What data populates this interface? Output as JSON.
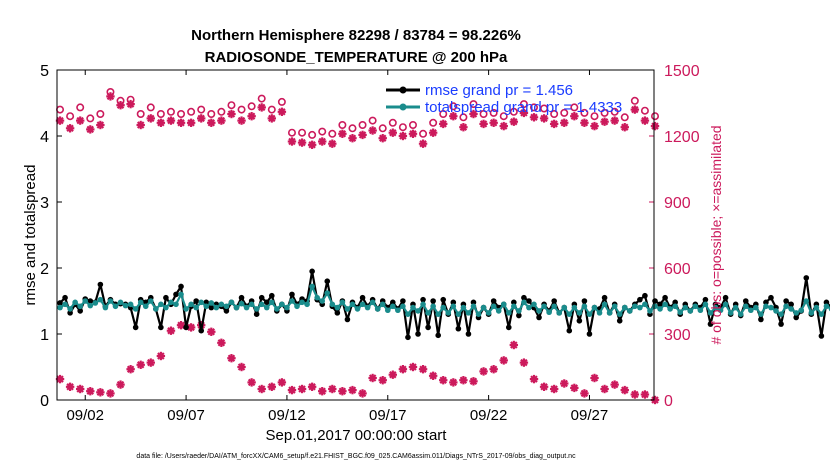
{
  "chart_data": {
    "type": "line",
    "title_line1": "Northern Hemisphere 82298 / 83784 = 98.226%",
    "title_line2": "RADIOSONDE_TEMPERATURE @ 200 hPa",
    "xlabel": "Sep.01,2017 00:00:00 start",
    "ylabel_left": "rmse and totalspread",
    "ylabel_right": "# of obs: o=possible; ×=assimilated",
    "footnote": "data file: /Users/raeder/DAI/ATM_forcXX/CAM6_setup/f.e21.FHIST_BGC.f09_025.CAM6assim.011/Diags_NTrS_2017-09/obs_diag_output.nc",
    "xlim": [
      0.6,
      30.2
    ],
    "ylim_left": [
      0,
      5
    ],
    "ylim_right": [
      0,
      1500
    ],
    "yticks_left": [
      "0",
      "1",
      "2",
      "3",
      "4",
      "5"
    ],
    "yticks_right": [
      "0",
      "300",
      "600",
      "900",
      "1200",
      "1500"
    ],
    "xticks": [
      {
        "day": 2,
        "label": "09/02"
      },
      {
        "day": 7,
        "label": "09/07"
      },
      {
        "day": 12,
        "label": "09/12"
      },
      {
        "day": 17,
        "label": "09/17"
      },
      {
        "day": 22,
        "label": "09/22"
      },
      {
        "day": 27,
        "label": "09/27"
      }
    ],
    "grid": false,
    "legend_location": "top-right",
    "colors": {
      "rmse": "#000000",
      "spread": "#1a8c8c",
      "obs": "#cc1a5c"
    },
    "legend": [
      {
        "label": "rmse grand pr = 1.456",
        "color": "#000000"
      },
      {
        "label": "totalspread grand pr = 1.4333",
        "color": "#1a8c8c"
      }
    ],
    "series": [
      {
        "name": "rmse",
        "axis": "left",
        "x_start": 0.75,
        "x_step": 0.25,
        "values": [
          1.47,
          1.55,
          1.32,
          1.45,
          1.35,
          1.53,
          1.5,
          1.48,
          1.75,
          1.42,
          1.52,
          1.45,
          1.46,
          1.45,
          1.4,
          1.1,
          1.52,
          1.48,
          1.55,
          1.38,
          1.1,
          1.55,
          1.45,
          1.6,
          1.72,
          1.1,
          1.42,
          1.5,
          1.05,
          1.48,
          1.4,
          1.45,
          1.42,
          1.35,
          1.48,
          1.4,
          1.55,
          1.42,
          1.5,
          1.3,
          1.55,
          1.48,
          1.58,
          1.35,
          1.45,
          1.35,
          1.6,
          1.45,
          1.53,
          1.5,
          1.95,
          1.52,
          1.45,
          1.8,
          1.42,
          1.32,
          1.5,
          1.22,
          1.48,
          1.4,
          1.55,
          1.42,
          1.52,
          1.38,
          1.5,
          1.4,
          1.48,
          1.38,
          1.5,
          0.95,
          1.45,
          1.0,
          1.52,
          1.1,
          1.5,
          0.98,
          1.52,
          1.3,
          1.48,
          1.08,
          1.45,
          1.0,
          1.48,
          1.25,
          1.4,
          1.3,
          1.5,
          1.4,
          1.45,
          1.1,
          1.48,
          1.28,
          1.55,
          1.5,
          1.4,
          1.25,
          1.45,
          1.35,
          1.5,
          1.32,
          1.4,
          1.05,
          1.45,
          1.2,
          1.5,
          1.0,
          1.4,
          1.38,
          1.55,
          1.32,
          1.45,
          1.2,
          1.4,
          1.35,
          1.45,
          1.52,
          1.58,
          1.3,
          1.5,
          1.45,
          1.55,
          1.4,
          1.48,
          1.3,
          1.45,
          1.35,
          1.45,
          1.4,
          1.52,
          1.15,
          1.45,
          1.4,
          1.55,
          1.3,
          1.45,
          1.28,
          1.5,
          1.4,
          1.45,
          1.22,
          1.48,
          1.55,
          1.4,
          1.15,
          1.5,
          1.45,
          1.25,
          1.35,
          1.85,
          1.3,
          1.45,
          0.97,
          1.48,
          1.4,
          1.42,
          1.3,
          1.55,
          1.62
        ]
      },
      {
        "name": "totalspread",
        "axis": "left",
        "x_start": 0.75,
        "x_step": 0.25,
        "values": [
          1.4,
          1.45,
          1.38,
          1.48,
          1.42,
          1.5,
          1.43,
          1.47,
          1.52,
          1.4,
          1.5,
          1.42,
          1.48,
          1.43,
          1.45,
          1.38,
          1.48,
          1.42,
          1.5,
          1.38,
          1.45,
          1.4,
          1.48,
          1.45,
          1.6,
          1.38,
          1.45,
          1.4,
          1.48,
          1.42,
          1.47,
          1.4,
          1.45,
          1.42,
          1.48,
          1.4,
          1.46,
          1.4,
          1.45,
          1.38,
          1.45,
          1.4,
          1.48,
          1.38,
          1.45,
          1.4,
          1.5,
          1.42,
          1.48,
          1.45,
          1.72,
          1.55,
          1.5,
          1.62,
          1.45,
          1.4,
          1.48,
          1.38,
          1.45,
          1.38,
          1.45,
          1.4,
          1.48,
          1.38,
          1.45,
          1.36,
          1.42,
          1.36,
          1.42,
          1.3,
          1.4,
          1.35,
          1.45,
          1.32,
          1.42,
          1.3,
          1.4,
          1.32,
          1.42,
          1.3,
          1.4,
          1.32,
          1.42,
          1.3,
          1.4,
          1.32,
          1.42,
          1.35,
          1.45,
          1.32,
          1.42,
          1.35,
          1.48,
          1.4,
          1.45,
          1.35,
          1.42,
          1.33,
          1.42,
          1.32,
          1.4,
          1.3,
          1.4,
          1.32,
          1.42,
          1.3,
          1.4,
          1.32,
          1.45,
          1.32,
          1.42,
          1.3,
          1.4,
          1.35,
          1.42,
          1.4,
          1.45,
          1.35,
          1.42,
          1.38,
          1.45,
          1.38,
          1.42,
          1.33,
          1.4,
          1.35,
          1.42,
          1.36,
          1.45,
          1.32,
          1.4,
          1.36,
          1.45,
          1.32,
          1.4,
          1.3,
          1.42,
          1.36,
          1.4,
          1.3,
          1.42,
          1.4,
          1.35,
          1.3,
          1.42,
          1.38,
          1.32,
          1.36,
          1.5,
          1.32,
          1.4,
          1.3,
          1.42,
          1.38,
          1.4,
          1.32,
          1.45,
          1.32
        ]
      },
      {
        "name": "obs_possible",
        "axis": "right",
        "marker": "circle",
        "x_start": 0.75,
        "x_step": 0.5,
        "values": [
          1320,
          1290,
          1330,
          1280,
          1300,
          1400,
          1360,
          1365,
          1300,
          1330,
          1300,
          1310,
          1300,
          1310,
          1320,
          1300,
          1310,
          1340,
          1320,
          1335,
          1370,
          1320,
          1355,
          1215,
          1215,
          1205,
          1220,
          1210,
          1250,
          1235,
          1250,
          1270,
          1235,
          1260,
          1240,
          1250,
          1210,
          1260,
          1300,
          1335,
          1285,
          1345,
          1300,
          1305,
          1290,
          1310,
          1345,
          1330,
          1325,
          1300,
          1305,
          1330,
          1305,
          1290,
          1305,
          1310,
          1285,
          1360,
          1315,
          1290
        ]
      },
      {
        "name": "obs_assimilated",
        "axis": "right",
        "marker": "asterisk",
        "x_start": 0.75,
        "x_step": 0.5,
        "values": [
          1270,
          1235,
          1270,
          1230,
          1250,
          1380,
          1340,
          1345,
          1250,
          1280,
          1260,
          1270,
          1260,
          1260,
          1280,
          1260,
          1270,
          1300,
          1270,
          1290,
          1330,
          1280,
          1310,
          1175,
          1170,
          1160,
          1175,
          1165,
          1210,
          1190,
          1205,
          1225,
          1190,
          1215,
          1200,
          1210,
          1165,
          1215,
          1255,
          1290,
          1240,
          1300,
          1255,
          1260,
          1245,
          1265,
          1305,
          1285,
          1280,
          1255,
          1260,
          1290,
          1260,
          1245,
          1265,
          1270,
          1240,
          1320,
          1270,
          1245
        ]
      },
      {
        "name": "obs_assimilated_lower",
        "axis": "right",
        "marker": "asterisk",
        "x_start": 0.75,
        "x_step": 0.5,
        "values": [
          95,
          60,
          50,
          40,
          35,
          30,
          70,
          140,
          160,
          170,
          200,
          315,
          340,
          330,
          340,
          310,
          260,
          190,
          150,
          80,
          50,
          60,
          80,
          45,
          50,
          60,
          40,
          50,
          40,
          45,
          30,
          100,
          90,
          115,
          140,
          150,
          140,
          110,
          90,
          80,
          90,
          85,
          130,
          140,
          180,
          250,
          170,
          95,
          60,
          50,
          75,
          55,
          30,
          100,
          50,
          70,
          45,
          25,
          25,
          0
        ]
      }
    ]
  }
}
